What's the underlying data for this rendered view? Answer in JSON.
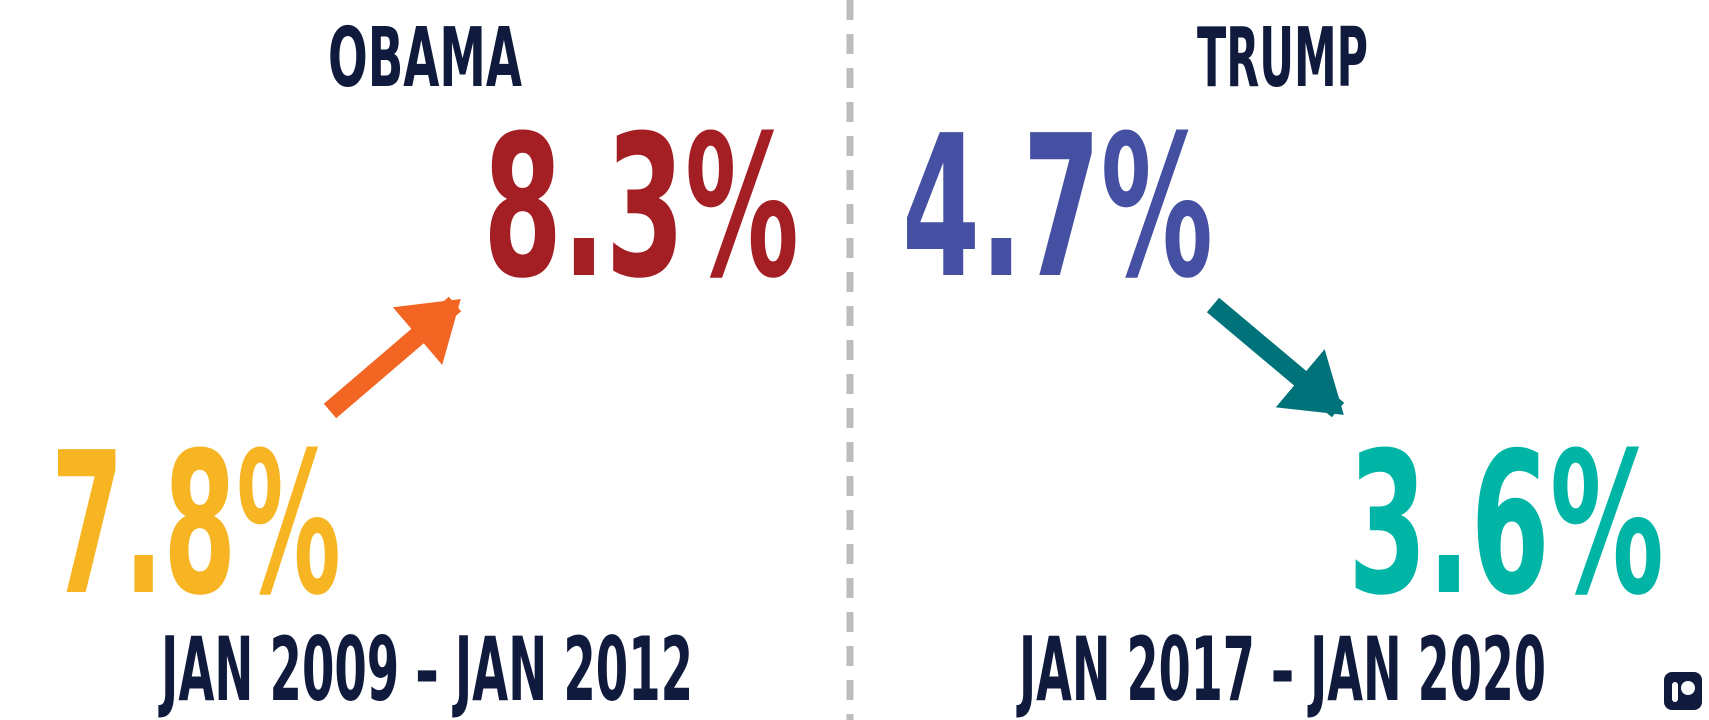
{
  "left": {
    "title": "OBAMA",
    "end_value": "8.3%",
    "start_value": "7.8%",
    "period": "JAN 2009 – JAN 2012"
  },
  "right": {
    "title": "TRUMP",
    "start_value": "4.7%",
    "end_value": "3.6%",
    "period": "JAN 2017 – JAN 2020"
  }
}
